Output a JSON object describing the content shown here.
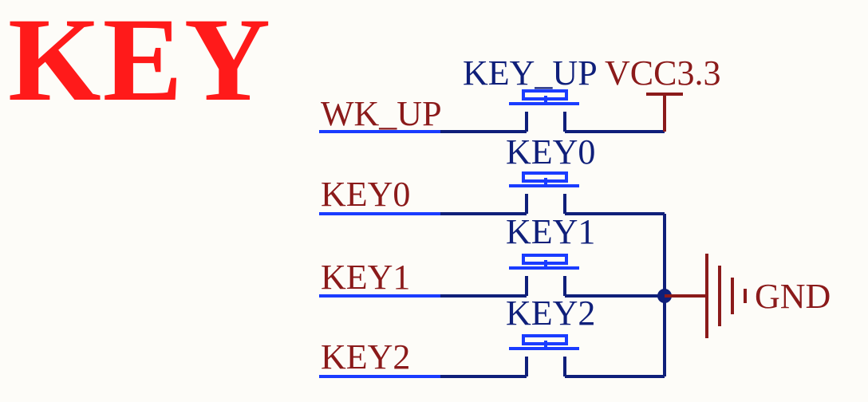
{
  "title": "KEY",
  "nets": [
    {
      "label": "WK_UP",
      "color": "#8b1a1a"
    },
    {
      "label": "KEY0",
      "color": "#8b1a1a"
    },
    {
      "label": "KEY1",
      "color": "#8b1a1a"
    },
    {
      "label": "KEY2",
      "color": "#8b1a1a"
    }
  ],
  "switches": [
    {
      "designator": "KEY_UP"
    },
    {
      "designator": "KEY0"
    },
    {
      "designator": "KEY1"
    },
    {
      "designator": "KEY2"
    }
  ],
  "power": {
    "label": "VCC3.3"
  },
  "ground": {
    "label": "GND"
  },
  "colors": {
    "title": "#ff1a1a",
    "wire": "#0f1f7a",
    "net_stub": "#1a3cff",
    "switch": "#1a3cff",
    "designator": "#0f1f7a",
    "power": "#8b1a1a",
    "junction": "#0f1f7a",
    "background": "#fdfcf8"
  }
}
